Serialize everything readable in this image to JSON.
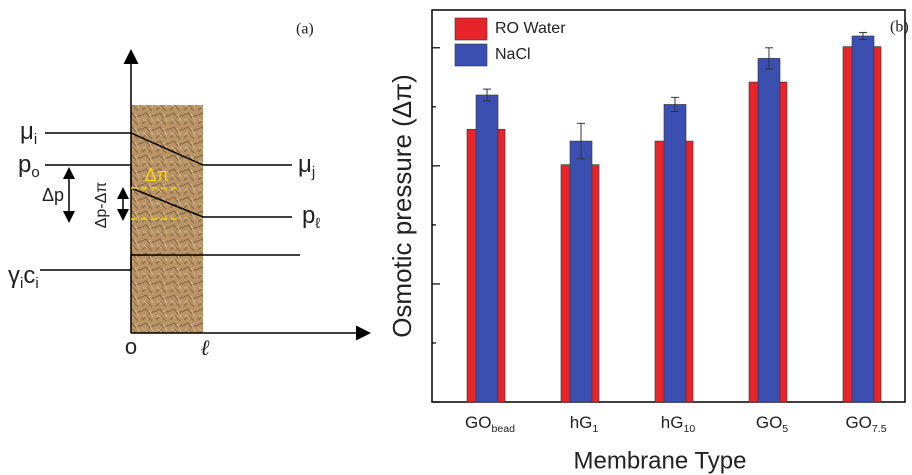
{
  "chart_data": {
    "type": "bar",
    "panel_label": "(b)",
    "y_label": "Osmotic pressure (Δπ)",
    "x_label": "Membrane Type",
    "categories": [
      {
        "text": "GO",
        "sub": "bead"
      },
      {
        "text": "hG",
        "sub": "1"
      },
      {
        "text": "hG",
        "sub": "10"
      },
      {
        "text": "GO",
        "sub": "5"
      },
      {
        "text": "GO",
        "sub": "7.5"
      }
    ],
    "series": [
      {
        "name": "RO Water",
        "color": "#e8242b",
        "values": [
          2.31,
          2.01,
          2.21,
          2.71,
          3.01
        ]
      },
      {
        "name": "NaCl",
        "color": "#3a4fb0",
        "values": [
          2.6,
          2.21,
          2.52,
          2.91,
          3.1
        ],
        "errors": [
          0.05,
          0.15,
          0.06,
          0.09,
          0.03
        ]
      }
    ],
    "ylim": [
      0,
      3.32
    ],
    "yticks": [
      0,
      0.5,
      1,
      1.5,
      2,
      2.5,
      3
    ],
    "legend": "upper left"
  },
  "diagram": {
    "panel_label": "(a)",
    "labels": [
      {
        "text": "μ",
        "sub": "i"
      },
      {
        "text": "p",
        "sub": "o"
      },
      {
        "text": "Δp"
      },
      {
        "text": "Δp-Δπ"
      },
      {
        "text": "Δπ"
      },
      {
        "text": "μ",
        "sub": "j"
      },
      {
        "text": "p",
        "sub": "ℓ"
      },
      {
        "text": "γ",
        "sub": "i"
      },
      {
        "text": "c",
        "sub": "i"
      },
      {
        "text": "o"
      },
      {
        "text": "ℓ"
      }
    ]
  }
}
